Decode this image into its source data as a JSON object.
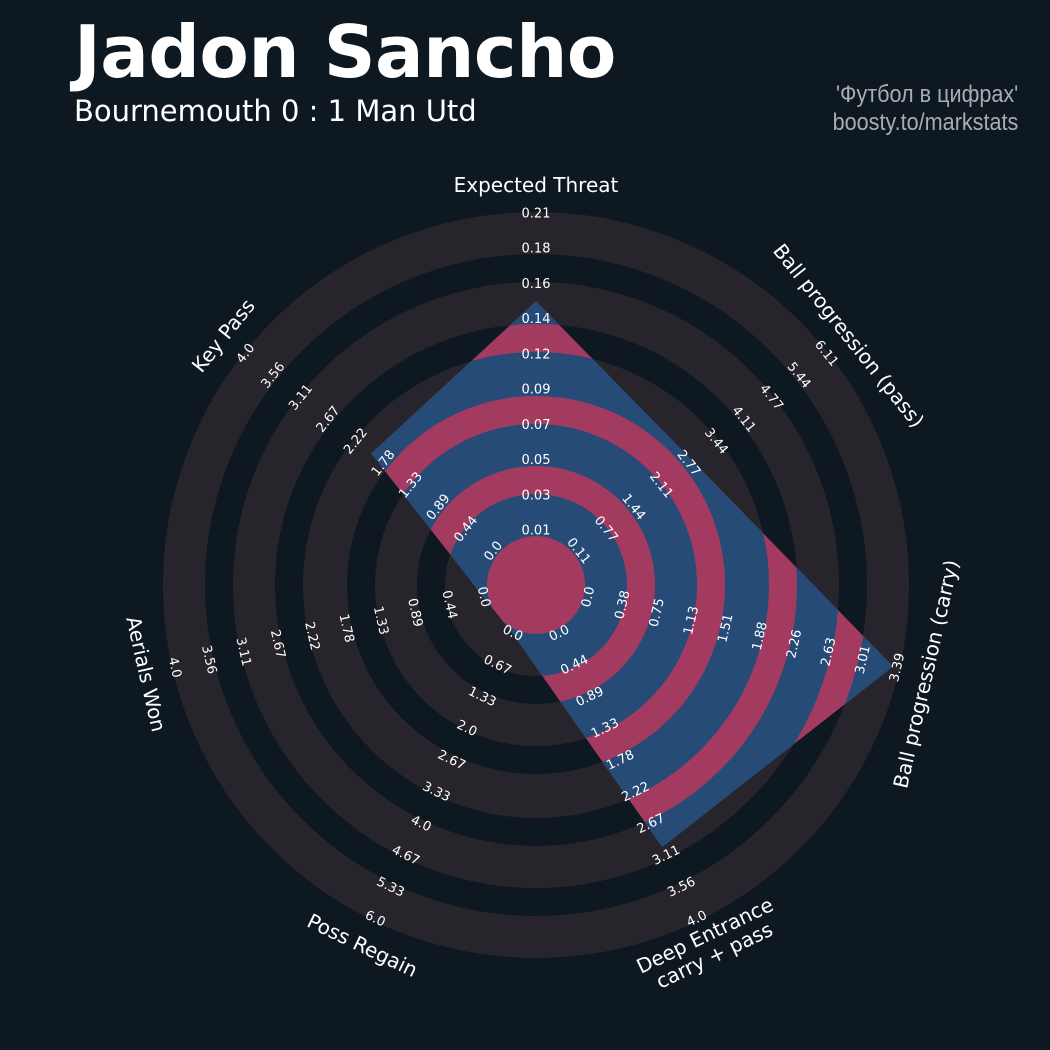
{
  "header": {
    "title": "Jadon Sancho",
    "subtitle": "Bournemouth 0 : 1 Man Utd",
    "credit_line1": "'Футбол в цифрах'",
    "credit_line2": "boosty.to/markstats"
  },
  "colors": {
    "background": "#0e1821",
    "ring": "#28242b",
    "player_fill": "#274b77",
    "player_ring_fill": "#a33b60",
    "text": "#ffffff",
    "credit_text": "#a9adb3"
  },
  "chart_data": {
    "type": "radar",
    "player": "Jadon Sancho",
    "params": [
      {
        "label": [
          "Expected Threat"
        ],
        "range": [
          0.01,
          0.21
        ],
        "value": 0.155,
        "ticks": [
          "0.01",
          "0.03",
          "0.05",
          "0.07",
          "0.09",
          "0.12",
          "0.14",
          "0.16",
          "0.18",
          "0.21"
        ]
      },
      {
        "label": [
          "Ball progression (pass)"
        ],
        "range": [
          0.11,
          6.11
        ],
        "value": 2.87,
        "ticks": [
          "0.11",
          "0.77",
          "1.44",
          "2.11",
          "2.77",
          "3.44",
          "4.11",
          "4.77",
          "5.44",
          "6.11"
        ]
      },
      {
        "label": [
          "Ball progression (carry)"
        ],
        "range": [
          0.0,
          3.39
        ],
        "value": 3.34,
        "ticks": [
          "0.0",
          "0.38",
          "0.75",
          "1.13",
          "1.51",
          "1.88",
          "2.26",
          "2.63",
          "3.01",
          "3.39"
        ]
      },
      {
        "label": [
          "Deep Entrance",
          "carry + pass"
        ],
        "range": [
          0.0,
          4.0
        ],
        "value": 2.99,
        "ticks": [
          "0.0",
          "0.44",
          "0.89",
          "1.33",
          "1.78",
          "2.22",
          "2.67",
          "3.11",
          "3.56",
          "4.0"
        ]
      },
      {
        "label": [
          "Poss Regain"
        ],
        "range": [
          0.0,
          6.0
        ],
        "value": 0.0,
        "ticks": [
          "0.0",
          "0.67",
          "1.33",
          "2.0",
          "2.67",
          "3.33",
          "4.0",
          "4.67",
          "5.33",
          "6.0"
        ]
      },
      {
        "label": [
          "Aerials Won"
        ],
        "range": [
          0.0,
          4.0
        ],
        "value": 0.0,
        "ticks": [
          "0.0",
          "0.44",
          "0.89",
          "1.33",
          "1.78",
          "2.22",
          "2.67",
          "3.11",
          "3.56",
          "4.0"
        ]
      },
      {
        "label": [
          "Key Pass"
        ],
        "range": [
          0.0,
          4.0
        ],
        "value": 1.98,
        "ticks": [
          "0.0",
          "0.44",
          "0.89",
          "1.33",
          "1.78",
          "2.22",
          "2.67",
          "3.11",
          "3.56",
          "4.0"
        ]
      }
    ]
  }
}
